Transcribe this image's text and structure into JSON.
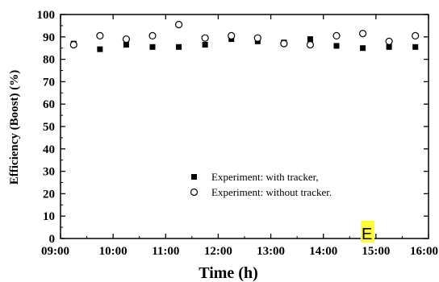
{
  "chart_data": {
    "type": "scatter",
    "xlabel": "Time (h)",
    "ylabel": "Efficiency (Boost) (%)",
    "xlim": [
      "09:00",
      "16:00"
    ],
    "ylim": [
      0,
      100
    ],
    "x_ticks": [
      "09:00",
      "10:00",
      "11:00",
      "12:00",
      "13:00",
      "14:00",
      "15:00",
      "16:00"
    ],
    "y_ticks": [
      0,
      10,
      20,
      30,
      40,
      50,
      60,
      70,
      80,
      90,
      100
    ],
    "grid": false,
    "legend_position": "lower-right",
    "series": [
      {
        "name": "Experiment: with tracker,",
        "marker": "filled-square",
        "color": "#000000",
        "x": [
          "09:15",
          "09:45",
          "10:15",
          "10:45",
          "11:15",
          "11:45",
          "12:15",
          "12:45",
          "13:15",
          "13:45",
          "14:15",
          "14:45",
          "15:15",
          "15:45"
        ],
        "y": [
          87.0,
          84.5,
          86.5,
          85.5,
          85.5,
          86.5,
          89.0,
          88.0,
          87.5,
          89.0,
          86.0,
          85.0,
          85.5,
          85.5
        ]
      },
      {
        "name": "Experiment: without tracker.",
        "marker": "open-circle",
        "color": "#000000",
        "x": [
          "09:15",
          "09:45",
          "10:15",
          "10:45",
          "11:15",
          "11:45",
          "12:15",
          "12:45",
          "13:15",
          "13:45",
          "14:15",
          "14:45",
          "15:15",
          "15:45"
        ],
        "y": [
          86.5,
          90.5,
          89.0,
          90.5,
          95.5,
          89.5,
          90.5,
          89.5,
          87.0,
          86.5,
          90.5,
          91.5,
          88.0,
          90.5
        ]
      }
    ],
    "annotation": {
      "text": "E",
      "highlight_color": "#ffff33"
    }
  }
}
